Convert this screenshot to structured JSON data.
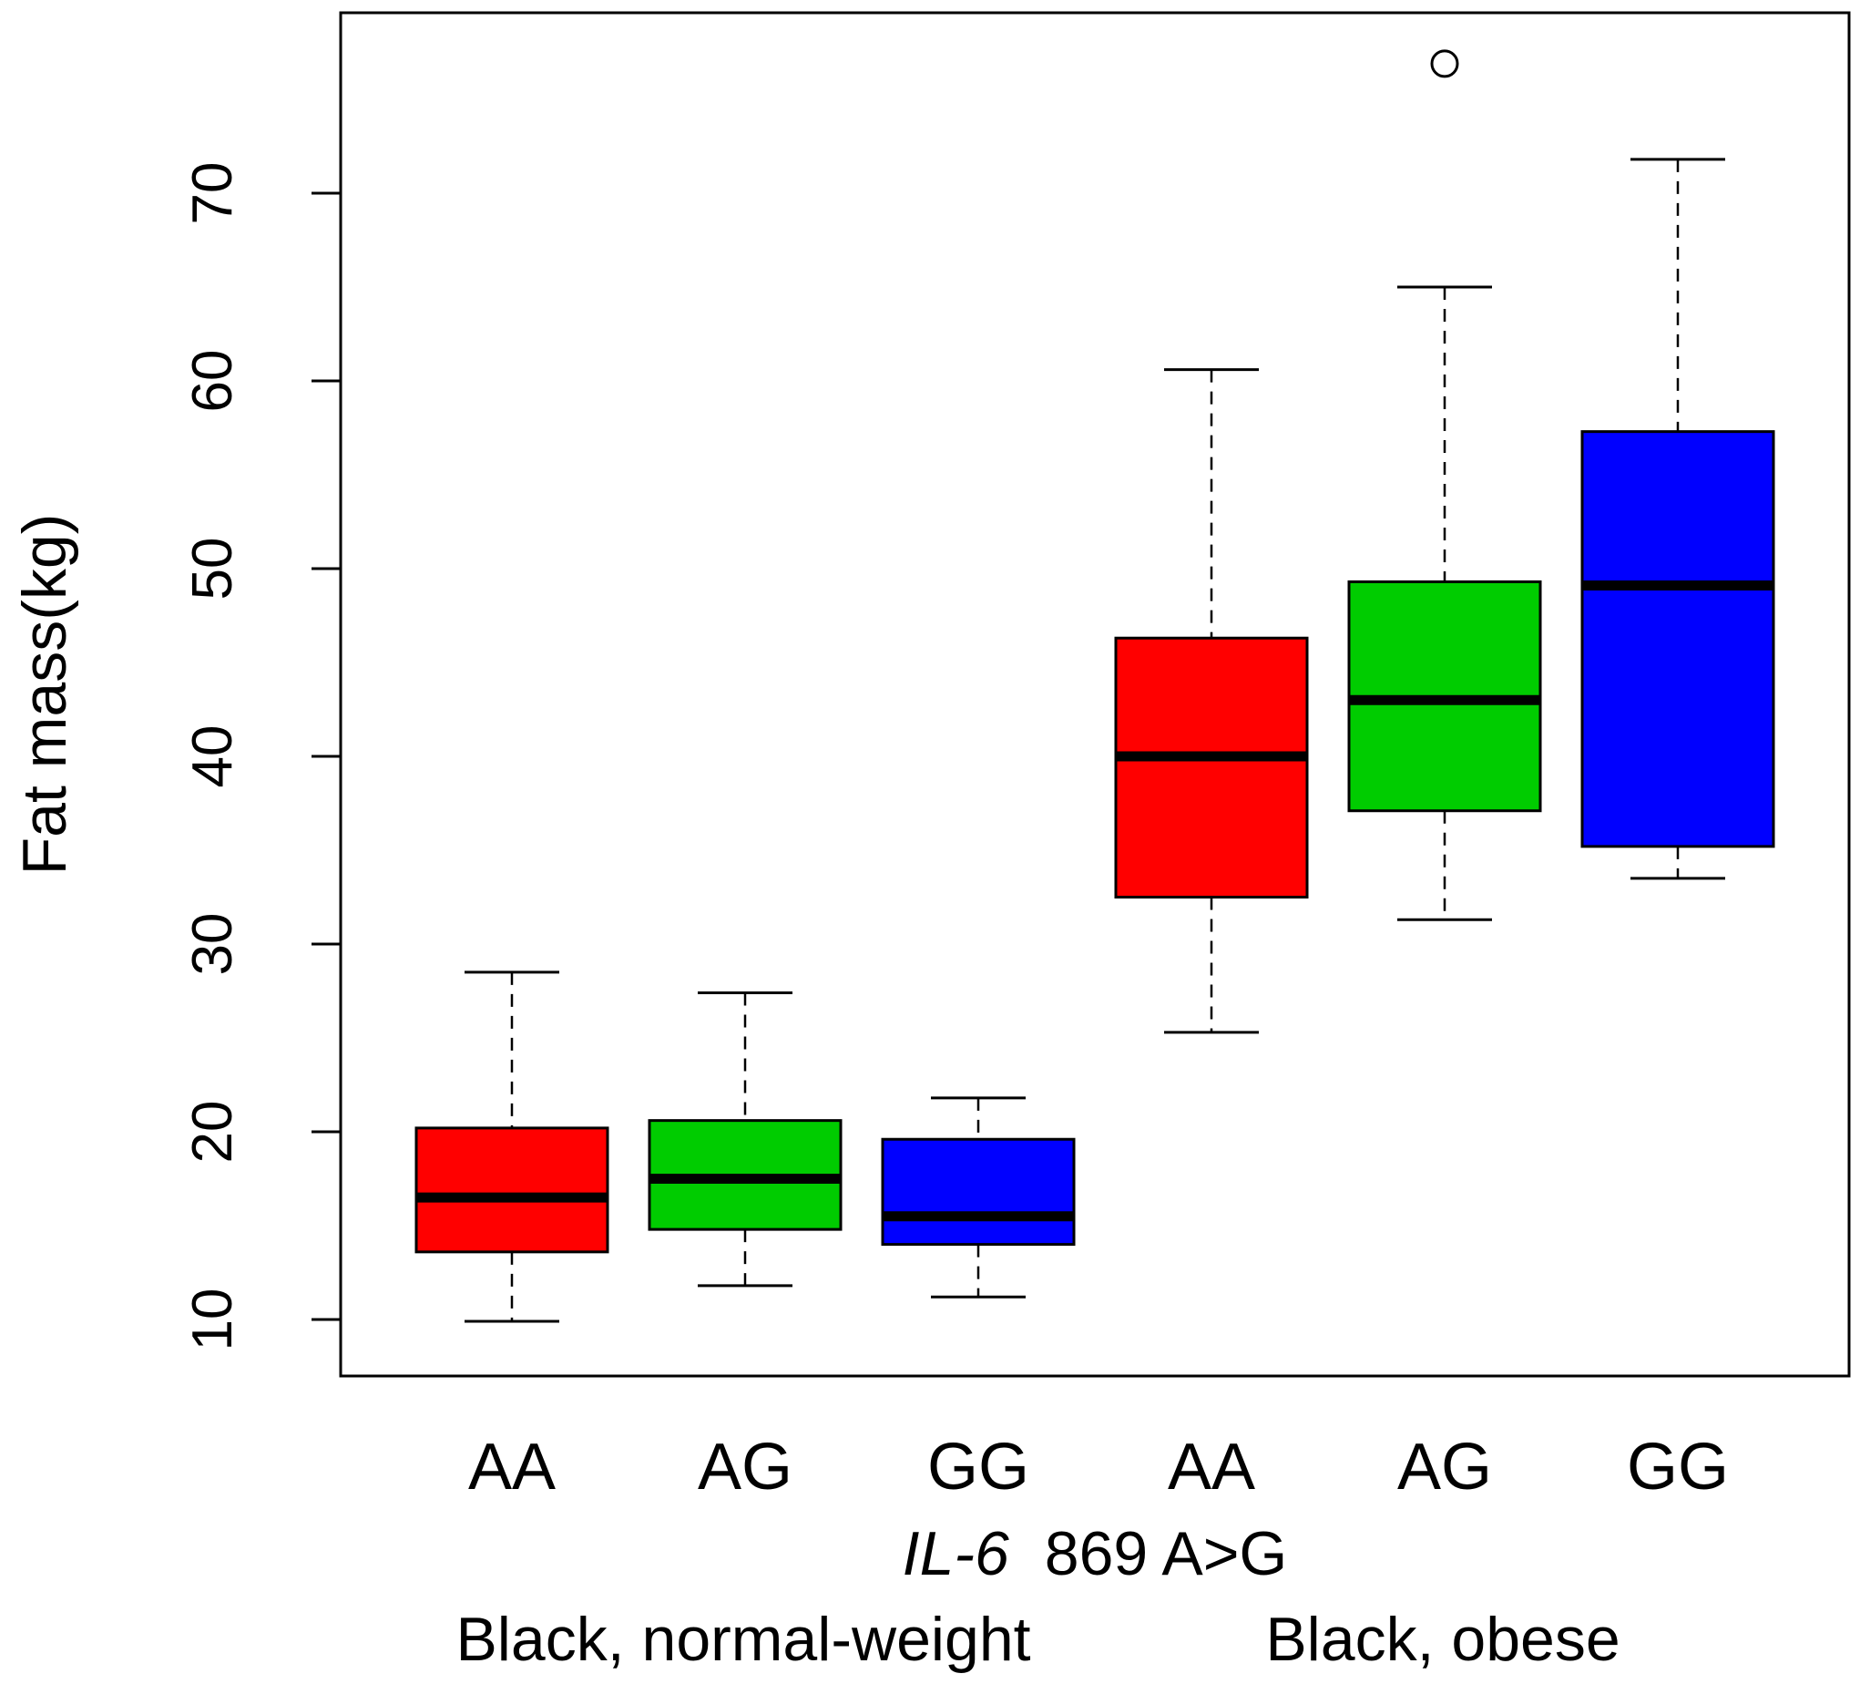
{
  "chart_data": {
    "type": "boxplot",
    "title": "",
    "xlabel_italic": "IL-6",
    "xlabel_rest": "869 A>G",
    "ylabel": "Fat mass(kg)",
    "ylim": [
      7,
      80
    ],
    "yticks": [
      "10",
      "20",
      "30",
      "40",
      "50",
      "60",
      "70"
    ],
    "categories": [
      "AA",
      "AG",
      "GG",
      "AA",
      "AG",
      "GG"
    ],
    "groups": [
      "Black, normal-weight",
      "Black, obese"
    ],
    "colors": [
      "#ff0000",
      "#00cc00",
      "#0000ff",
      "#ff0000",
      "#00cc00",
      "#0000ff"
    ],
    "boxes": [
      {
        "genotype": "AA",
        "group": "Black, normal-weight",
        "min": 9.9,
        "q1": 13.6,
        "median": 16.5,
        "q3": 20.2,
        "max": 28.5,
        "outliers": []
      },
      {
        "genotype": "AG",
        "group": "Black, normal-weight",
        "min": 11.8,
        "q1": 14.8,
        "median": 17.5,
        "q3": 20.6,
        "max": 27.4,
        "outliers": []
      },
      {
        "genotype": "GG",
        "group": "Black, normal-weight",
        "min": 11.2,
        "q1": 14.0,
        "median": 15.5,
        "q3": 19.6,
        "max": 21.8,
        "outliers": []
      },
      {
        "genotype": "AA",
        "group": "Black, obese",
        "min": 25.3,
        "q1": 32.5,
        "median": 40.0,
        "q3": 46.3,
        "max": 60.6,
        "outliers": []
      },
      {
        "genotype": "AG",
        "group": "Black, obese",
        "min": 31.3,
        "q1": 37.1,
        "median": 43.0,
        "q3": 49.3,
        "max": 65.0,
        "outliers": [
          76.9
        ]
      },
      {
        "genotype": "GG",
        "group": "Black, obese",
        "min": 33.5,
        "q1": 35.2,
        "median": 49.1,
        "q3": 57.3,
        "max": 71.8,
        "outliers": []
      }
    ]
  }
}
